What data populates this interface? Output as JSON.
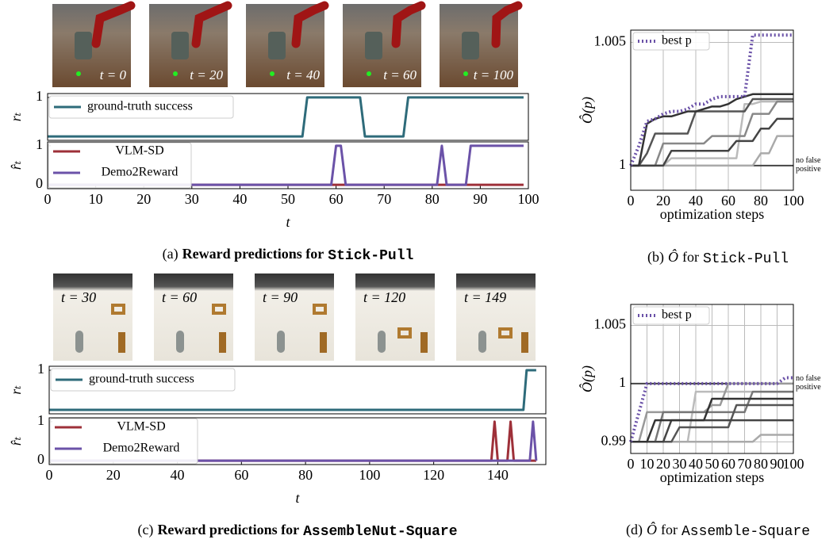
{
  "chart_data": [
    {
      "type": "line",
      "ylabel": "rₜ",
      "xlim": [
        0,
        100
      ],
      "ylim": [
        -0.1,
        1.1
      ],
      "yticks": [
        1
      ],
      "frame_labels": [
        "t = 0",
        "t = 20",
        "t = 40",
        "t = 60",
        "t = 100"
      ],
      "series": [
        {
          "name": "ground-truth success",
          "color": "#2e6b7a",
          "x": [
            0,
            53,
            54,
            65,
            66,
            74,
            75,
            99
          ],
          "values": [
            0,
            0,
            1,
            1,
            0,
            0,
            1,
            1
          ]
        }
      ]
    },
    {
      "type": "line",
      "ylabel": "r̂ₜ",
      "xlabel": "t",
      "xlim": [
        0,
        100
      ],
      "ylim": [
        -0.1,
        1.1
      ],
      "yticks": [
        0,
        1
      ],
      "xticks": [
        0,
        10,
        20,
        30,
        40,
        50,
        60,
        70,
        80,
        90,
        100
      ],
      "caption": [
        "(a)",
        "Reward predictions for",
        "Stick-Pull"
      ],
      "series": [
        {
          "name": "VLM-SD",
          "color": "#9e3039",
          "x": [
            0,
            99
          ],
          "values": [
            0,
            0
          ]
        },
        {
          "name": "Demo2Reward",
          "color": "#6b52a8",
          "x": [
            0,
            59,
            60,
            61,
            62,
            81,
            82,
            83,
            87,
            88,
            99
          ],
          "values": [
            0,
            0,
            1,
            1,
            0,
            0,
            1,
            0,
            0,
            1,
            1
          ]
        }
      ]
    },
    {
      "type": "line",
      "ylabel": "Ô(p)",
      "xlabel": "optimization steps",
      "grid": true,
      "xlim": [
        0,
        100
      ],
      "ylim": [
        0.999,
        1.0055
      ],
      "xticks": [
        0,
        20,
        40,
        60,
        80,
        100
      ],
      "yticks": [
        1,
        1.005
      ],
      "caption": [
        "(b)",
        "Ô",
        "for",
        "Stick-Pull"
      ],
      "reference_line": {
        "value": 1,
        "label": [
          "no false",
          "positive"
        ]
      },
      "x": [
        0,
        5,
        10,
        15,
        20,
        25,
        30,
        35,
        40,
        45,
        50,
        55,
        60,
        65,
        70,
        75,
        80,
        85,
        90,
        95,
        100
      ],
      "series": [
        {
          "color": "#bbbbbb",
          "values": [
            1,
            1,
            1,
            1,
            1,
            1.0003,
            1.0003,
            1.0003,
            1.0003,
            1.0003,
            1.0003,
            1.0003,
            1.0003,
            1.0003,
            1.0025,
            1.0025,
            1.0026,
            1.0026,
            1.0026,
            1.0026,
            1.0026
          ]
        },
        {
          "color": "#aaaaaa",
          "values": [
            1,
            1,
            1,
            1,
            1,
            1,
            1,
            1,
            1,
            1,
            1,
            1,
            1,
            1,
            1,
            1,
            1.0005,
            1.0005,
            1.0012,
            1.0012,
            1.0012
          ]
        },
        {
          "color": "#888888",
          "values": [
            1,
            1,
            1,
            1,
            1.0009,
            1.0009,
            1.0009,
            1.0009,
            1.0009,
            1.0009,
            1.0012,
            1.0012,
            1.0012,
            1.0012,
            1.0012,
            1.0021,
            1.0021,
            1.0021,
            1.0026,
            1.0026,
            1.0026
          ]
        },
        {
          "color": "#444444",
          "values": [
            1,
            1,
            1,
            1,
            1,
            1.0006,
            1.0006,
            1.0006,
            1.0006,
            1.0006,
            1.0006,
            1.0006,
            1.0006,
            1.001,
            1.001,
            1.001,
            1.0015,
            1.0015,
            1.0019,
            1.0019,
            1.0019
          ]
        },
        {
          "color": "#555555",
          "values": [
            1,
            1,
            1.0005,
            1.0013,
            1.0013,
            1.0013,
            1.0013,
            1.0013,
            1.0022,
            1.0022,
            1.0022,
            1.0022,
            1.0022,
            1.0022,
            1.0022,
            1.0027,
            1.0027,
            1.0027,
            1.0027,
            1.0027,
            1.0027
          ]
        },
        {
          "color": "#333333",
          "values": [
            1,
            1,
            1.0017,
            1.0019,
            1.002,
            1.002,
            1.0021,
            1.0022,
            1.0022,
            1.0023,
            1.0024,
            1.0024,
            1.0025,
            1.0027,
            1.0028,
            1.0029,
            1.0029,
            1.0029,
            1.0029,
            1.0029,
            1.0029
          ]
        },
        {
          "name": "best p",
          "color": "#6b52a8",
          "style": "dotted",
          "values": [
            1,
            1.0008,
            1.0018,
            1.0019,
            1.0021,
            1.0022,
            1.0022,
            1.0023,
            1.0025,
            1.0025,
            1.0027,
            1.0028,
            1.0028,
            1.0028,
            1.0028,
            1.0053,
            1.0053,
            1.0053,
            1.0053,
            1.0053,
            1.0053
          ]
        }
      ]
    },
    {
      "type": "line",
      "ylabel": "rₜ",
      "xlim": [
        0,
        155
      ],
      "ylim": [
        -0.1,
        1.1
      ],
      "yticks": [
        1
      ],
      "frame_labels": [
        "t = 30",
        "t = 60",
        "t = 90",
        "t = 120",
        "t = 149"
      ],
      "series": [
        {
          "name": "ground-truth success",
          "color": "#2e6b7a",
          "x": [
            0,
            148,
            149,
            152
          ],
          "values": [
            0,
            0,
            1,
            1
          ]
        }
      ]
    },
    {
      "type": "line",
      "ylabel": "r̂ₜ",
      "xlabel": "t",
      "xlim": [
        0,
        155
      ],
      "ylim": [
        -0.1,
        1.1
      ],
      "yticks": [
        0,
        1
      ],
      "xticks": [
        0,
        20,
        40,
        60,
        80,
        100,
        120,
        140
      ],
      "caption": [
        "(c)",
        "Reward predictions for",
        "AssembleNut-Square"
      ],
      "series": [
        {
          "name": "VLM-SD",
          "color": "#9e3039",
          "x": [
            0,
            138,
            139,
            140,
            143,
            144,
            145,
            152
          ],
          "values": [
            0,
            0,
            1,
            0,
            0,
            1,
            0,
            0
          ]
        },
        {
          "name": "Demo2Reward",
          "color": "#6b52a8",
          "x": [
            0,
            150,
            151,
            152
          ],
          "values": [
            0,
            0,
            1,
            0
          ]
        }
      ]
    },
    {
      "type": "line",
      "ylabel": "Ô(p)",
      "xlabel": "optimization steps",
      "grid": true,
      "yscale": "piecewise",
      "xlim": [
        0,
        100
      ],
      "ylim": [
        0.988,
        1.0068
      ],
      "xticks": [
        0,
        10,
        20,
        30,
        40,
        50,
        60,
        70,
        80,
        90,
        100
      ],
      "yticks": [
        0.99,
        1,
        1.005
      ],
      "caption": [
        "(d)",
        "Ô",
        "for",
        "Assemble-Square"
      ],
      "reference_line": {
        "value": 1,
        "label": [
          "no false",
          "positive"
        ]
      },
      "x": [
        0,
        5,
        10,
        15,
        20,
        25,
        30,
        35,
        40,
        45,
        50,
        55,
        60,
        65,
        70,
        75,
        80,
        85,
        90,
        95,
        100
      ],
      "series": [
        {
          "color": "#bbbbbb",
          "values": [
            0.99,
            0.99,
            0.99,
            0.99,
            0.99,
            0.99,
            0.99,
            0.99,
            0.9986,
            0.9986,
            0.9986,
            0.9986,
            0.9986,
            0.9986,
            0.9986,
            0.9986,
            0.9986,
            0.9986,
            0.9986,
            0.9986,
            0.9986
          ]
        },
        {
          "color": "#aaaaaa",
          "values": [
            0.99,
            0.99,
            0.99,
            0.99,
            0.99,
            0.99,
            0.99,
            0.99,
            0.99,
            0.99,
            0.99,
            0.99,
            0.99,
            0.99,
            0.99,
            0.99,
            0.9912,
            0.9912,
            0.9912,
            0.9912,
            0.9912
          ]
        },
        {
          "color": "#999999",
          "values": [
            0.99,
            0.99,
            0.9951,
            0.9951,
            0.9951,
            0.9951,
            0.9951,
            0.9951,
            0.9951,
            0.9951,
            0.9963,
            0.9963,
            1,
            1,
            1,
            1,
            1,
            1,
            1,
            1,
            1
          ]
        },
        {
          "color": "#777777",
          "values": [
            0.99,
            0.99,
            0.99,
            0.99,
            0.9951,
            0.9951,
            0.9951,
            0.9951,
            0.9951,
            0.9951,
            0.9951,
            0.9951,
            0.9951,
            0.9951,
            0.9951,
            0.9986,
            0.9986,
            0.9986,
            0.9986,
            0.9986,
            0.9986
          ]
        },
        {
          "color": "#555555",
          "values": [
            0.99,
            0.99,
            0.99,
            0.99,
            0.99,
            0.99,
            0.9925,
            0.9925,
            0.9925,
            0.9925,
            0.9925,
            0.9925,
            0.9925,
            0.9963,
            0.9963,
            0.9963,
            0.9963,
            0.9963,
            0.9963,
            0.9963,
            0.9963
          ]
        },
        {
          "color": "#444444",
          "values": [
            0.99,
            0.99,
            0.99,
            0.99,
            0.99,
            0.9937,
            0.9937,
            0.9937,
            0.9937,
            0.9937,
            0.9937,
            0.9937,
            0.9937,
            0.9937,
            0.9937,
            0.9937,
            0.9937,
            0.9937,
            0.9937,
            0.9937,
            0.9937
          ]
        },
        {
          "color": "#333333",
          "values": [
            0.99,
            0.99,
            0.99,
            0.9937,
            0.9937,
            0.9937,
            0.9937,
            0.9937,
            0.9937,
            0.9937,
            0.9974,
            0.9974,
            0.9974,
            0.9974,
            0.9974,
            0.9974,
            0.9974,
            0.9974,
            0.9974,
            0.9974,
            0.9974
          ]
        },
        {
          "name": "best p",
          "color": "#6b52a8",
          "style": "dotted",
          "values": [
            0.99,
            0.995,
            1,
            1,
            1,
            1,
            1,
            1,
            1,
            1,
            1,
            1,
            1,
            1,
            1,
            1,
            1,
            1,
            1,
            1.0005,
            1.0005
          ]
        }
      ]
    }
  ]
}
